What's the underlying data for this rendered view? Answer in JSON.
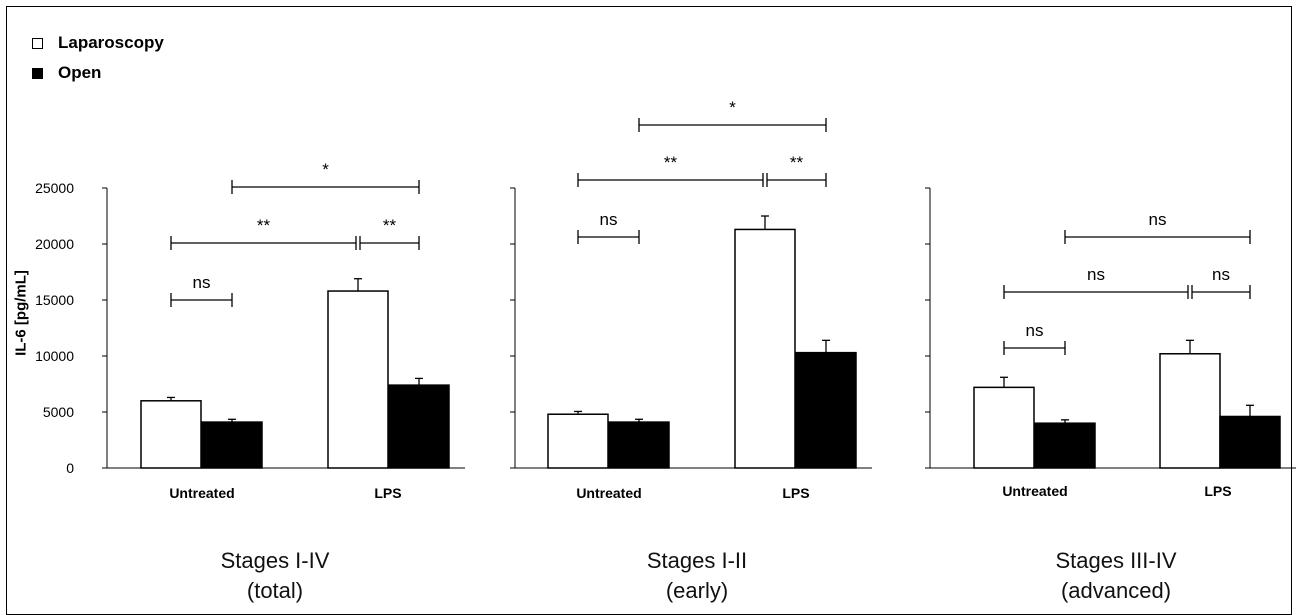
{
  "chart_data": {
    "type": "bar",
    "ylabel": "IL-6 [pg/mL]",
    "yticks": [
      0,
      5000,
      10000,
      15000,
      20000,
      25000
    ],
    "ylim": [
      0,
      25000
    ],
    "legend": {
      "placement": "top-left",
      "entries": [
        {
          "name": "Laparoscopy",
          "color": "#ffffff"
        },
        {
          "name": "Open",
          "color": "#000000"
        }
      ]
    },
    "panels": [
      {
        "title_line1": "Stages I-IV",
        "title_line2": "(total)",
        "categories": [
          "Untreated",
          "LPS"
        ],
        "series": [
          {
            "name": "Laparoscopy",
            "values": [
              6000,
              15800
            ],
            "errors": [
              300,
              1100
            ]
          },
          {
            "name": "Open",
            "values": [
              4100,
              7400
            ],
            "errors": [
              250,
              600
            ]
          }
        ],
        "significance": [
          {
            "text": "ns",
            "from": "Untreated-Laparoscopy",
            "to": "Untreated-Open"
          },
          {
            "text": "**",
            "from": "Untreated-Laparoscopy",
            "to": "LPS-Laparoscopy"
          },
          {
            "text": "**",
            "from": "LPS-Laparoscopy",
            "to": "LPS-Open"
          },
          {
            "text": "*",
            "from": "Untreated-Open",
            "to": "LPS-Open"
          }
        ]
      },
      {
        "title_line1": "Stages I-II",
        "title_line2": "(early)",
        "categories": [
          "Untreated",
          "LPS"
        ],
        "series": [
          {
            "name": "Laparoscopy",
            "values": [
              4800,
              21300
            ],
            "errors": [
              250,
              1200
            ]
          },
          {
            "name": "Open",
            "values": [
              4100,
              10300
            ],
            "errors": [
              250,
              1100
            ]
          }
        ],
        "significance": [
          {
            "text": "ns",
            "from": "Untreated-Laparoscopy",
            "to": "Untreated-Open"
          },
          {
            "text": "**",
            "from": "Untreated-Laparoscopy",
            "to": "LPS-Laparoscopy"
          },
          {
            "text": "**",
            "from": "LPS-Laparoscopy",
            "to": "LPS-Open"
          },
          {
            "text": "*",
            "from": "Untreated-Open",
            "to": "LPS-Open"
          }
        ]
      },
      {
        "title_line1": "Stages III-IV",
        "title_line2": "(advanced)",
        "categories": [
          "Untreated",
          "LPS"
        ],
        "series": [
          {
            "name": "Laparoscopy",
            "values": [
              7200,
              10200
            ],
            "errors": [
              900,
              1200
            ]
          },
          {
            "name": "Open",
            "values": [
              4000,
              4600
            ],
            "errors": [
              300,
              1000
            ]
          }
        ],
        "significance": [
          {
            "text": "ns",
            "from": "Untreated-Laparoscopy",
            "to": "Untreated-Open"
          },
          {
            "text": "ns",
            "from": "Untreated-Laparoscopy",
            "to": "LPS-Laparoscopy"
          },
          {
            "text": "ns",
            "from": "LPS-Laparoscopy",
            "to": "LPS-Open"
          },
          {
            "text": "ns",
            "from": "Untreated-Open",
            "to": "LPS-Open"
          }
        ]
      }
    ]
  }
}
